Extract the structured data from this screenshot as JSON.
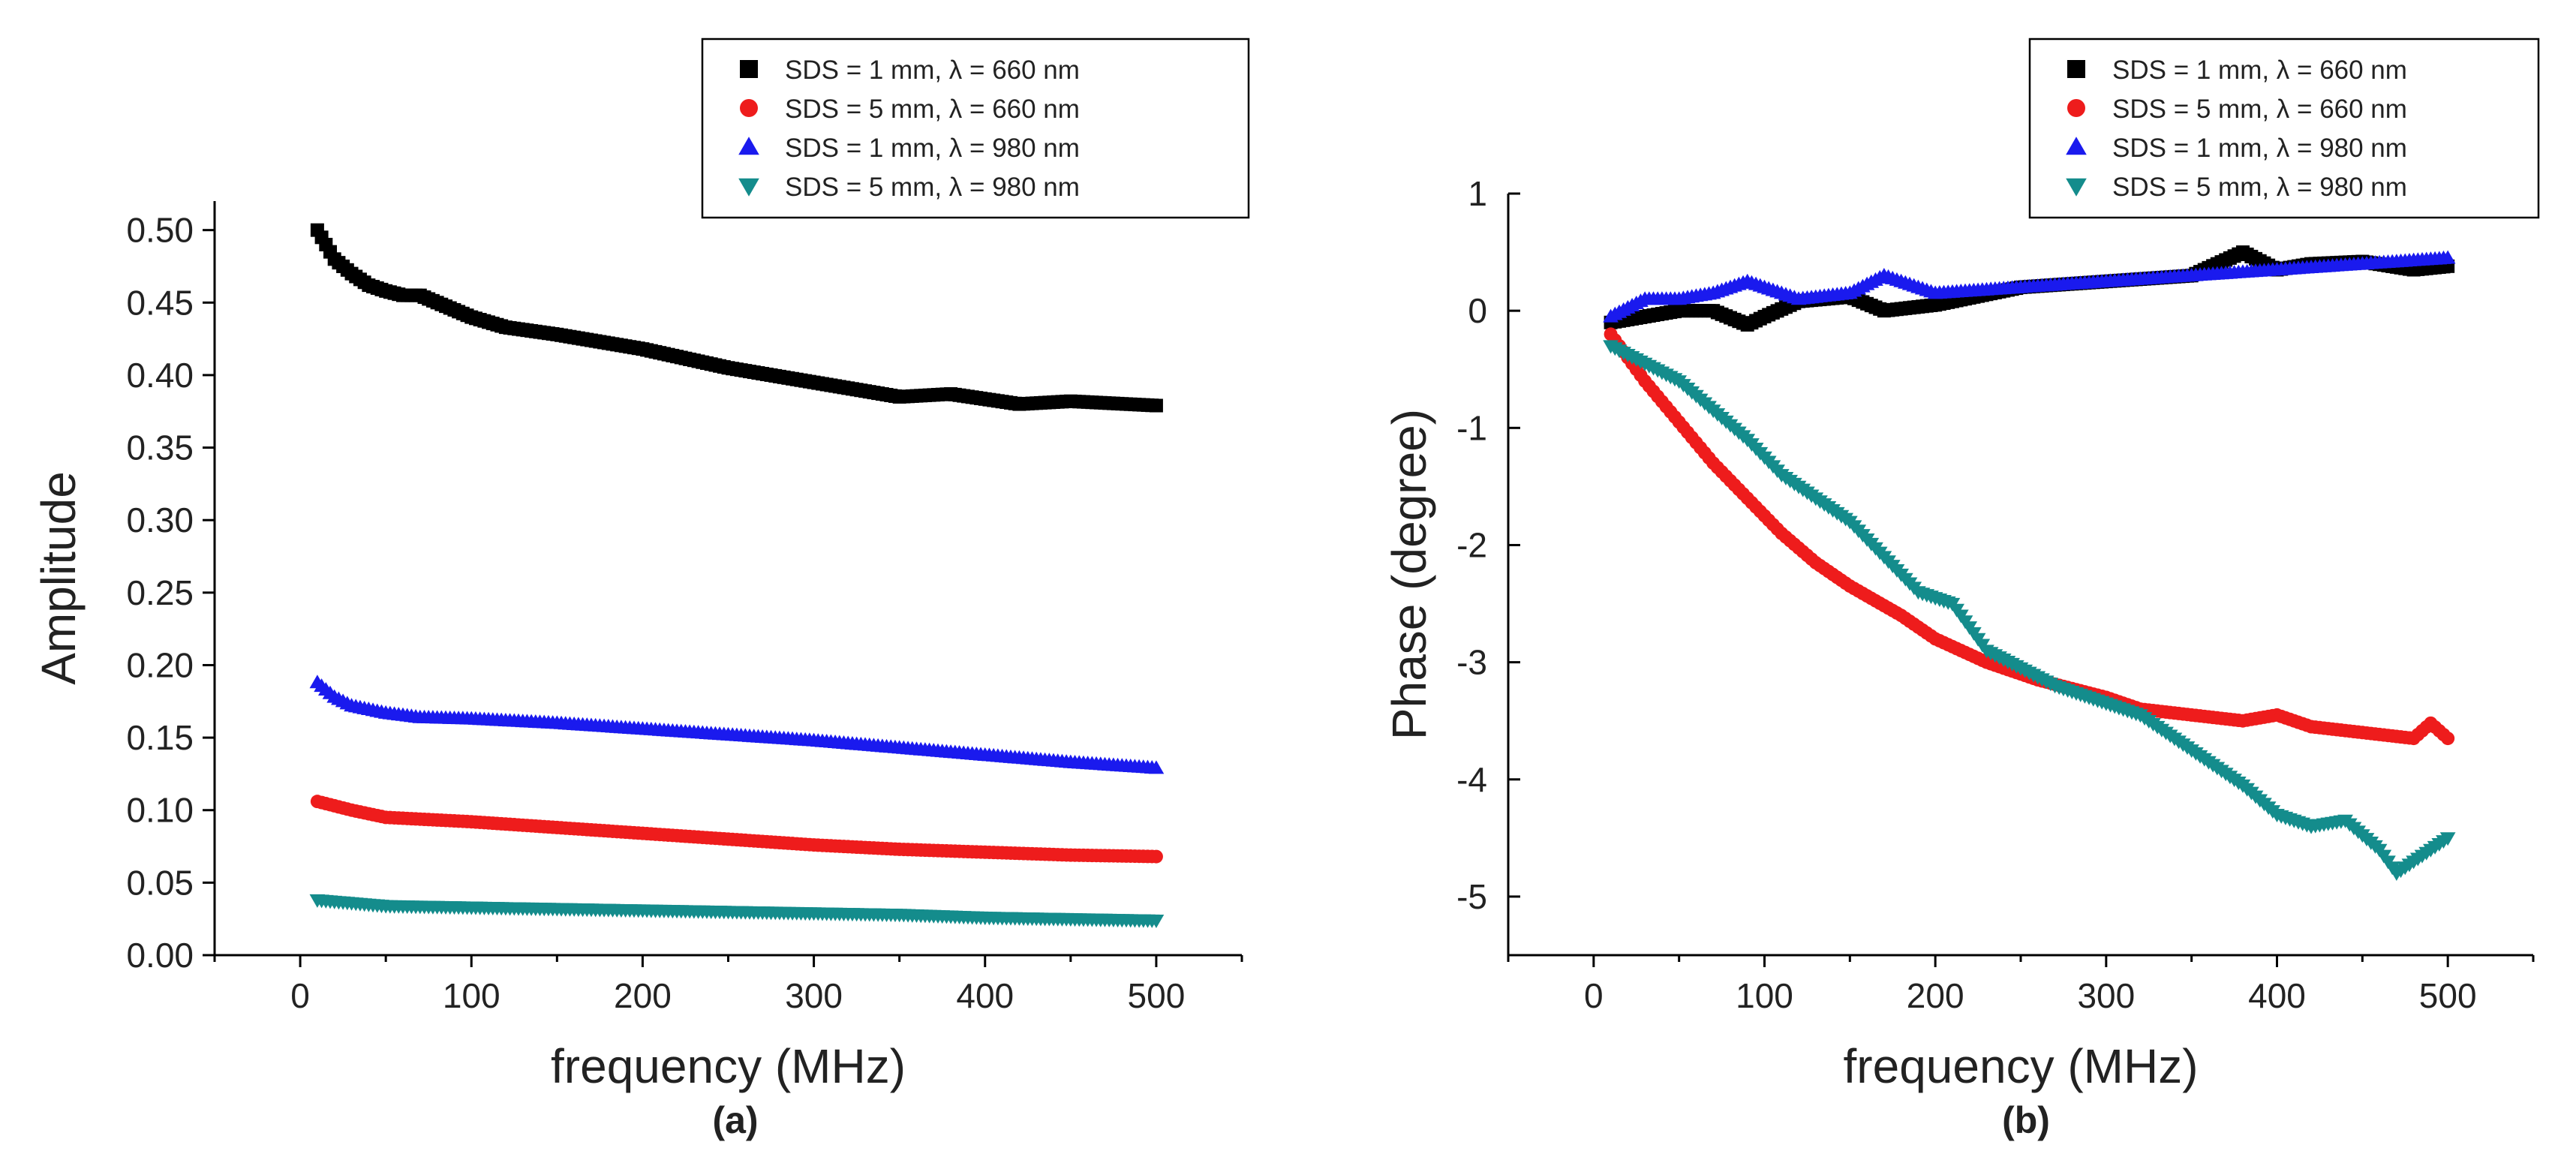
{
  "chart_data": [
    {
      "type": "scatter",
      "panel_label": "(a)",
      "xlabel": "frequency (MHz)",
      "ylabel": "Amplitude",
      "xlim": [
        -50,
        550
      ],
      "ylim": [
        0.0,
        0.52
      ],
      "x_ticks": [
        0,
        100,
        200,
        300,
        400,
        500
      ],
      "x_tick_labels": [
        "0",
        "100",
        "200",
        "300",
        "400",
        "500"
      ],
      "y_ticks": [
        0.0,
        0.05,
        0.1,
        0.15,
        0.2,
        0.25,
        0.3,
        0.35,
        0.4,
        0.45,
        0.5
      ],
      "y_tick_labels": [
        "0.00",
        "0.05",
        "0.10",
        "0.15",
        "0.20",
        "0.25",
        "0.30",
        "0.35",
        "0.40",
        "0.45",
        "0.50"
      ],
      "legend_location": "top-right",
      "series": [
        {
          "name": "SDS = 1 mm, λ = 660 nm",
          "marker": "square",
          "color": "#000000",
          "x": [
            10,
            20,
            30,
            40,
            50,
            60,
            70,
            80,
            100,
            120,
            150,
            200,
            250,
            300,
            350,
            380,
            420,
            450,
            500
          ],
          "y": [
            0.5,
            0.48,
            0.47,
            0.462,
            0.458,
            0.455,
            0.455,
            0.45,
            0.44,
            0.433,
            0.428,
            0.418,
            0.405,
            0.395,
            0.385,
            0.387,
            0.38,
            0.382,
            0.379
          ]
        },
        {
          "name": "SDS = 5 mm, λ = 660 nm",
          "marker": "circle",
          "color": "#ee1c1c",
          "x": [
            10,
            30,
            50,
            100,
            150,
            200,
            250,
            300,
            350,
            400,
            450,
            500
          ],
          "y": [
            0.106,
            0.1,
            0.095,
            0.092,
            0.088,
            0.084,
            0.08,
            0.076,
            0.073,
            0.071,
            0.069,
            0.068
          ]
        },
        {
          "name": "SDS = 1 mm, λ = 980 nm",
          "marker": "triangle-up",
          "color": "#1a1aee",
          "x": [
            10,
            20,
            30,
            50,
            70,
            100,
            150,
            200,
            250,
            300,
            350,
            400,
            450,
            500
          ],
          "y": [
            0.188,
            0.178,
            0.172,
            0.167,
            0.164,
            0.163,
            0.16,
            0.156,
            0.152,
            0.148,
            0.143,
            0.138,
            0.133,
            0.129
          ]
        },
        {
          "name": "SDS = 5 mm, λ = 980 nm",
          "marker": "triangle-down",
          "color": "#148c8c",
          "x": [
            10,
            30,
            50,
            100,
            150,
            200,
            250,
            300,
            350,
            400,
            450,
            500
          ],
          "y": [
            0.038,
            0.036,
            0.034,
            0.033,
            0.032,
            0.031,
            0.03,
            0.029,
            0.028,
            0.026,
            0.025,
            0.024
          ]
        }
      ]
    },
    {
      "type": "scatter",
      "panel_label": "(b)",
      "xlabel": "frequency (MHz)",
      "ylabel": "Phase (degree)",
      "xlim": [
        -50,
        550
      ],
      "ylim": [
        -5.5,
        1.0
      ],
      "x_ticks": [
        0,
        100,
        200,
        300,
        400,
        500
      ],
      "x_tick_labels": [
        "0",
        "100",
        "200",
        "300",
        "400",
        "500"
      ],
      "y_ticks": [
        1,
        0,
        -1,
        -2,
        -3,
        -4,
        -5
      ],
      "y_tick_labels": [
        "1",
        "0",
        "-1",
        "-2",
        "-3",
        "-4",
        "-5"
      ],
      "legend_location": "top-right",
      "series": [
        {
          "name": "SDS = 1 mm, λ = 660 nm",
          "marker": "square",
          "color": "#000000",
          "x": [
            10,
            30,
            50,
            70,
            90,
            100,
            120,
            150,
            170,
            200,
            250,
            300,
            350,
            380,
            400,
            420,
            450,
            480,
            500
          ],
          "y": [
            -0.1,
            -0.05,
            0.0,
            0.0,
            -0.12,
            -0.05,
            0.08,
            0.12,
            0.0,
            0.05,
            0.2,
            0.25,
            0.3,
            0.5,
            0.35,
            0.4,
            0.42,
            0.35,
            0.38
          ]
        },
        {
          "name": "SDS = 5 mm, λ = 660 nm",
          "marker": "circle",
          "color": "#ee1c1c",
          "x": [
            10,
            30,
            50,
            70,
            90,
            110,
            130,
            150,
            180,
            200,
            230,
            260,
            300,
            320,
            350,
            380,
            400,
            420,
            450,
            480,
            490,
            500
          ],
          "y": [
            -0.2,
            -0.6,
            -0.95,
            -1.3,
            -1.6,
            -1.9,
            -2.15,
            -2.35,
            -2.6,
            -2.8,
            -3.0,
            -3.15,
            -3.3,
            -3.4,
            -3.45,
            -3.5,
            -3.45,
            -3.55,
            -3.6,
            -3.65,
            -3.52,
            -3.65
          ]
        },
        {
          "name": "SDS = 1 mm, λ = 980 nm",
          "marker": "triangle-up",
          "color": "#1a1aee",
          "x": [
            10,
            30,
            50,
            70,
            90,
            100,
            120,
            150,
            170,
            180,
            200,
            250,
            300,
            350,
            400,
            450,
            500
          ],
          "y": [
            -0.05,
            0.1,
            0.1,
            0.15,
            0.25,
            0.2,
            0.1,
            0.15,
            0.3,
            0.25,
            0.15,
            0.2,
            0.25,
            0.3,
            0.35,
            0.4,
            0.45
          ]
        },
        {
          "name": "SDS = 5 mm, λ = 980 nm",
          "marker": "triangle-down",
          "color": "#148c8c",
          "x": [
            10,
            30,
            50,
            70,
            90,
            110,
            130,
            150,
            170,
            190,
            210,
            230,
            250,
            270,
            300,
            320,
            350,
            380,
            400,
            420,
            440,
            460,
            470,
            480,
            500
          ],
          "y": [
            -0.3,
            -0.45,
            -0.6,
            -0.85,
            -1.1,
            -1.4,
            -1.6,
            -1.8,
            -2.1,
            -2.4,
            -2.5,
            -2.9,
            -3.05,
            -3.2,
            -3.35,
            -3.45,
            -3.75,
            -4.05,
            -4.3,
            -4.4,
            -4.35,
            -4.6,
            -4.8,
            -4.7,
            -4.5
          ]
        }
      ]
    }
  ]
}
